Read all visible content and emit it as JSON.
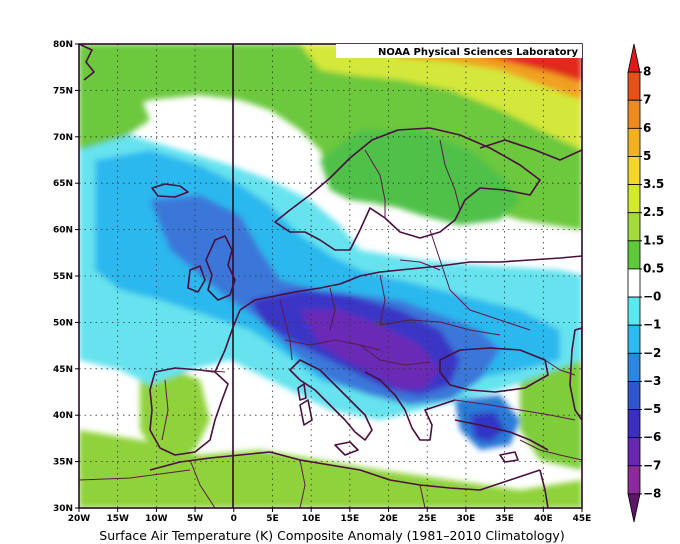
{
  "map": {
    "credit": "NOAA Physical Sciences Laboratory",
    "caption": "Surface Air Temperature (K) Composite Anomaly (1981–2010 Climatology)",
    "lat_labels": [
      "80N",
      "75N",
      "70N",
      "65N",
      "60N",
      "55N",
      "50N",
      "45N",
      "40N",
      "35N",
      "30N"
    ],
    "lon_labels": [
      "20W",
      "15W",
      "10W",
      "5W",
      "0",
      "5E",
      "10E",
      "15E",
      "20E",
      "25E",
      "30E",
      "35E",
      "40E",
      "45E"
    ],
    "extent": {
      "lon": [
        -20,
        45
      ],
      "lat": [
        30,
        80
      ]
    },
    "projection": "equirectangular",
    "grid": "dotted"
  },
  "colorbar": {
    "labels": [
      "8",
      "7",
      "6",
      "5",
      "3.5",
      "2.5",
      "1.5",
      "0.5",
      "−0",
      "−1",
      "−2",
      "−3",
      "−5",
      "−6",
      "−7",
      "−8"
    ],
    "colors": [
      "#e01a1a",
      "#e8501a",
      "#ef8a1f",
      "#f2b21f",
      "#f4d62a",
      "#d3ea2c",
      "#a4da3a",
      "#5ec83b",
      "#ffffff",
      "#58e8ee",
      "#2cbbf0",
      "#2a86de",
      "#2f55cf",
      "#3b2fbf",
      "#6727b0",
      "#8a2a9e",
      "#5c1766"
    ],
    "top_color": "#e01a1a",
    "bottom_color": "#5c1766"
  },
  "palette": {
    "border": "#5a1a4a",
    "coast": "#4a0f3e",
    "background": "#ffffff"
  }
}
